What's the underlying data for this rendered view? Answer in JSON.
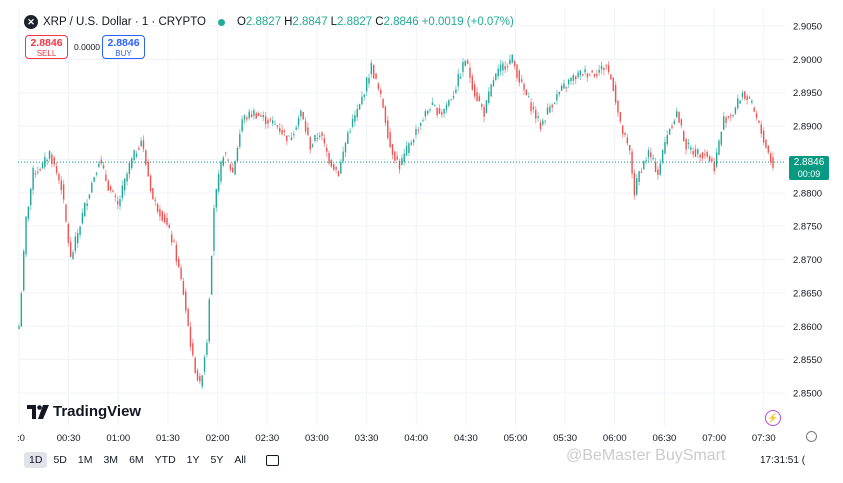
{
  "header": {
    "symbol_icon": "x-logo-icon",
    "title": "XRP / U.S. Dollar · 1 · CRYPTO",
    "status_color": "#22ab94",
    "ohlc": {
      "o_label": "O",
      "o_value": "2.8827",
      "h_label": "H",
      "h_value": "2.8847",
      "l_label": "L",
      "l_value": "2.8827",
      "c_label": "C",
      "c_value": "2.8846",
      "change": "+0.0019 (+0.07%)"
    }
  },
  "trade": {
    "sell_price": "2.8846",
    "sell_label": "SELL",
    "spread": "0.0000",
    "buy_price": "2.8846",
    "buy_label": "BUY"
  },
  "price_tag": {
    "price": "2.8846",
    "countdown": "00:09",
    "color": "#089981"
  },
  "logo": {
    "text": "TradingView"
  },
  "ranges": {
    "items": [
      "1D",
      "5D",
      "1M",
      "3M",
      "6M",
      "YTD",
      "1Y",
      "5Y",
      "All"
    ],
    "active": "1D"
  },
  "clock": "17:31:51 (",
  "watermark": "@BeMaster BuySmart",
  "colors": {
    "up": "#26a69a",
    "down": "#ef5350",
    "up_wick": "#7fd1c6",
    "down_wick": "#f29ba0"
  },
  "chart_data": {
    "type": "candlestick",
    "title": "XRP / U.S. Dollar · 1 · CRYPTO",
    "y_ticks": [
      "2.8500",
      "2.8550",
      "2.8600",
      "2.8650",
      "2.8700",
      "2.8750",
      "2.8800",
      "2.8850",
      "2.8900",
      "2.8950",
      "2.9000",
      "2.9050"
    ],
    "x_ticks": [
      ":0",
      "00:30",
      "01:00",
      "01:30",
      "02:00",
      "02:30",
      "03:00",
      "03:30",
      "04:00",
      "04:30",
      "05:00",
      "05:30",
      "06:00",
      "06:30",
      "07:00",
      "07:30"
    ],
    "ylim": [
      2.8485,
      2.9065
    ],
    "current_price": 2.8846,
    "grid": true,
    "anchors": [
      [
        0,
        2.86
      ],
      [
        3,
        2.876
      ],
      [
        6,
        2.883
      ],
      [
        10,
        2.884
      ],
      [
        13,
        2.886
      ],
      [
        18,
        2.881
      ],
      [
        22,
        2.87
      ],
      [
        28,
        2.878
      ],
      [
        34,
        2.885
      ],
      [
        38,
        2.881
      ],
      [
        42,
        2.878
      ],
      [
        47,
        2.884
      ],
      [
        52,
        2.888
      ],
      [
        57,
        2.879
      ],
      [
        62,
        2.876
      ],
      [
        66,
        2.872
      ],
      [
        70,
        2.865
      ],
      [
        74,
        2.855
      ],
      [
        77,
        2.851
      ],
      [
        80,
        2.858
      ],
      [
        83,
        2.878
      ],
      [
        87,
        2.886
      ],
      [
        91,
        2.883
      ],
      [
        95,
        2.891
      ],
      [
        100,
        2.892
      ],
      [
        105,
        2.891
      ],
      [
        110,
        2.89
      ],
      [
        115,
        2.888
      ],
      [
        120,
        2.892
      ],
      [
        124,
        2.887
      ],
      [
        128,
        2.889
      ],
      [
        132,
        2.885
      ],
      [
        136,
        2.883
      ],
      [
        140,
        2.889
      ],
      [
        145,
        2.893
      ],
      [
        150,
        2.899
      ],
      [
        155,
        2.893
      ],
      [
        158,
        2.887
      ],
      [
        162,
        2.884
      ],
      [
        166,
        2.887
      ],
      [
        170,
        2.89
      ],
      [
        175,
        2.893
      ],
      [
        180,
        2.892
      ],
      [
        185,
        2.895
      ],
      [
        190,
        2.9
      ],
      [
        194,
        2.895
      ],
      [
        198,
        2.892
      ],
      [
        202,
        2.897
      ],
      [
        206,
        2.899
      ],
      [
        210,
        2.9
      ],
      [
        214,
        2.896
      ],
      [
        218,
        2.893
      ],
      [
        222,
        2.89
      ],
      [
        226,
        2.893
      ],
      [
        230,
        2.895
      ],
      [
        235,
        2.897
      ],
      [
        240,
        2.898
      ],
      [
        245,
        2.898
      ],
      [
        250,
        2.899
      ],
      [
        253,
        2.896
      ],
      [
        256,
        2.89
      ],
      [
        260,
        2.886
      ],
      [
        262,
        2.88
      ],
      [
        264,
        2.883
      ],
      [
        268,
        2.886
      ],
      [
        272,
        2.883
      ],
      [
        276,
        2.889
      ],
      [
        280,
        2.892
      ],
      [
        284,
        2.887
      ],
      [
        288,
        2.886
      ],
      [
        292,
        2.886
      ],
      [
        296,
        2.884
      ],
      [
        300,
        2.891
      ],
      [
        304,
        2.892
      ],
      [
        308,
        2.895
      ],
      [
        312,
        2.893
      ],
      [
        316,
        2.889
      ],
      [
        319,
        2.886
      ],
      [
        321,
        2.884
      ]
    ]
  }
}
